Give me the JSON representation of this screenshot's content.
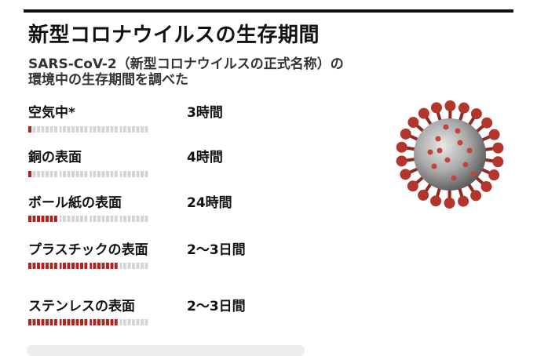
{
  "title": "新型コロナウイルスの生存期間",
  "subtitle_line1": "SARS-CoV-2（新型コロナウイルスの正式名称）の",
  "subtitle_line2": "環境中の生存期間を調べた",
  "colors": {
    "filled": "#b1231f",
    "empty": "#d4d4d4",
    "text": "#111111"
  },
  "chart_data": {
    "type": "bar",
    "orientation": "horizontal",
    "unit": "hours",
    "xlim": [
      0,
      96
    ],
    "categories": [
      "空気中*",
      "銅の表面",
      "ボール紙の表面",
      "プラスチックの表面",
      "ステンレスの表面"
    ],
    "value_labels": [
      "3時間",
      "4時間",
      "24時間",
      "2〜3日間",
      "2〜3日間"
    ],
    "values": [
      3,
      4,
      24,
      72,
      72
    ]
  },
  "illustration": {
    "icon": "coronavirus-illustration"
  }
}
